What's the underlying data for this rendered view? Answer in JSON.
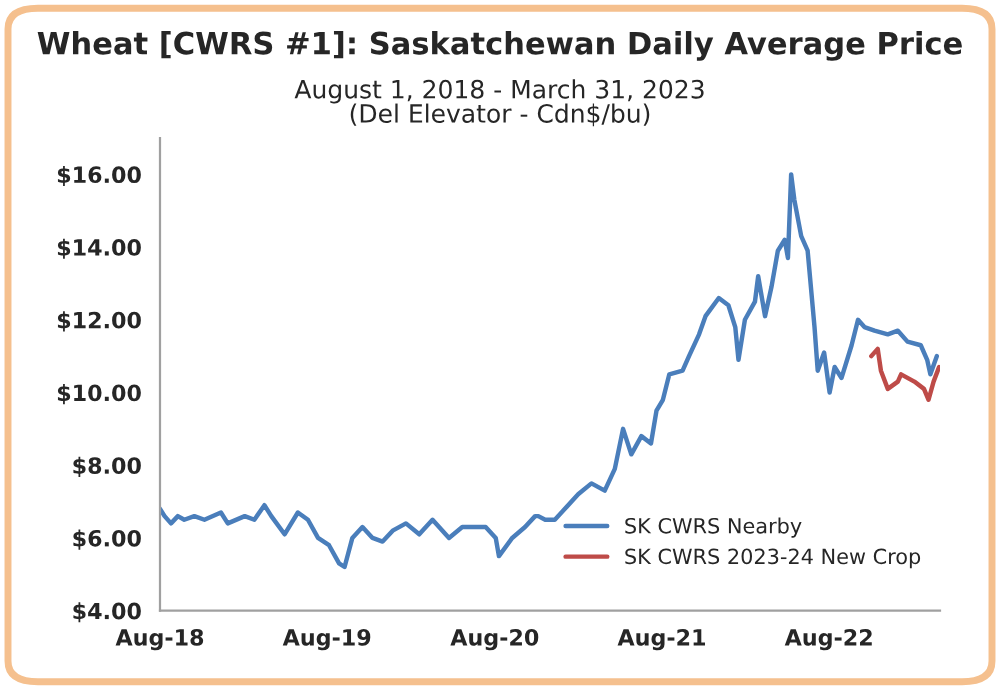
{
  "chart_data": {
    "type": "line",
    "title": "Wheat [CWRS #1]: Saskatchewan Daily Average Price",
    "subtitle": "August 1, 2018 - March 31, 2023\n(Del Elevator - Cdn$/bu)",
    "xlim": [
      "2018-08-01",
      "2023-03-31"
    ],
    "xticks": [
      {
        "value": "2018-08-01",
        "label": "Aug-18"
      },
      {
        "value": "2019-08-01",
        "label": "Aug-19"
      },
      {
        "value": "2020-08-01",
        "label": "Aug-20"
      },
      {
        "value": "2021-08-01",
        "label": "Aug-21"
      },
      {
        "value": "2022-08-01",
        "label": "Aug-22"
      }
    ],
    "ylim": [
      4,
      17
    ],
    "yticks": [
      {
        "value": 4,
        "label": "$4.00"
      },
      {
        "value": 6,
        "label": "$6.00"
      },
      {
        "value": 8,
        "label": "$8.00"
      },
      {
        "value": 10,
        "label": "$10.00"
      },
      {
        "value": 12,
        "label": "$12.00"
      },
      {
        "value": 14,
        "label": "$14.00"
      },
      {
        "value": 16,
        "label": "$16.00"
      }
    ],
    "grid": false,
    "legend": "bottom right",
    "marker": "none",
    "line_style": "solid",
    "series": [
      {
        "name": "SK CWRS Nearby",
        "color": "#4a7ebb",
        "x": [
          "2018-08-01",
          "2018-08-11",
          "2018-08-25",
          "2018-09-09",
          "2018-09-23",
          "2018-10-15",
          "2018-11-06",
          "2018-12-12",
          "2018-12-27",
          "2019-02-02",
          "2019-02-23",
          "2019-03-17",
          "2019-04-01",
          "2019-04-30",
          "2019-05-29",
          "2019-06-20",
          "2019-07-12",
          "2019-08-05",
          "2019-08-27",
          "2019-09-08",
          "2019-09-25",
          "2019-10-17",
          "2019-11-08",
          "2019-11-30",
          "2019-12-22",
          "2020-01-20",
          "2020-02-18",
          "2020-03-18",
          "2020-04-23",
          "2020-05-22",
          "2020-07-12",
          "2020-08-03",
          "2020-08-10",
          "2020-09-08",
          "2020-10-06",
          "2020-10-28",
          "2020-11-04",
          "2020-11-19",
          "2020-12-10",
          "2021-01-01",
          "2021-01-30",
          "2021-02-28",
          "2021-03-29",
          "2021-04-20",
          "2021-05-08",
          "2021-05-26",
          "2021-06-17",
          "2021-07-08",
          "2021-07-20",
          "2021-08-03",
          "2021-08-17",
          "2021-09-15",
          "2021-09-29",
          "2021-10-21",
          "2021-11-04",
          "2021-12-03",
          "2021-12-24",
          "2022-01-08",
          "2022-01-15",
          "2022-01-29",
          "2022-02-20",
          "2022-02-27",
          "2022-03-14",
          "2022-03-28",
          "2022-04-11",
          "2022-04-26",
          "2022-05-03",
          "2022-05-10",
          "2022-05-17",
          "2022-06-01",
          "2022-06-15",
          "2022-06-30",
          "2022-07-07",
          "2022-07-21",
          "2022-08-02",
          "2022-08-13",
          "2022-08-28",
          "2022-09-19",
          "2022-10-03",
          "2022-10-17",
          "2022-11-08",
          "2022-12-07",
          "2022-12-29",
          "2023-01-19",
          "2023-02-17",
          "2023-03-03",
          "2023-03-10",
          "2023-03-24"
        ],
        "values": [
          6.8,
          6.6,
          6.4,
          6.6,
          6.5,
          6.6,
          6.5,
          6.7,
          6.4,
          6.6,
          6.5,
          6.9,
          6.6,
          6.1,
          6.7,
          6.5,
          6.0,
          5.8,
          5.3,
          5.2,
          6.0,
          6.3,
          6.0,
          5.9,
          6.2,
          6.4,
          6.1,
          6.5,
          6.0,
          6.3,
          6.3,
          6.0,
          5.5,
          6.0,
          6.3,
          6.6,
          6.6,
          6.5,
          6.5,
          6.8,
          7.2,
          7.5,
          7.3,
          7.9,
          9.0,
          8.3,
          8.8,
          8.6,
          9.5,
          9.8,
          10.5,
          10.6,
          11.0,
          11.6,
          12.1,
          12.6,
          12.4,
          11.8,
          10.9,
          12.0,
          12.5,
          13.2,
          12.1,
          12.9,
          13.9,
          14.2,
          13.7,
          16.0,
          15.3,
          14.3,
          13.9,
          11.8,
          10.6,
          11.1,
          10.0,
          10.7,
          10.4,
          11.3,
          12.0,
          11.8,
          11.7,
          11.6,
          11.7,
          11.4,
          11.3,
          10.9,
          10.5,
          11.0
        ]
      },
      {
        "name": "SK CWRS 2023-24 New Crop",
        "color": "#be4b48",
        "x": [
          "2022-11-01",
          "2022-11-15",
          "2022-11-22",
          "2022-12-07",
          "2022-12-29",
          "2023-01-05",
          "2023-02-03",
          "2023-02-24",
          "2023-03-06",
          "2023-03-17",
          "2023-03-29"
        ],
        "values": [
          11.0,
          11.2,
          10.6,
          10.1,
          10.3,
          10.5,
          10.3,
          10.1,
          9.8,
          10.3,
          10.7
        ]
      }
    ]
  }
}
